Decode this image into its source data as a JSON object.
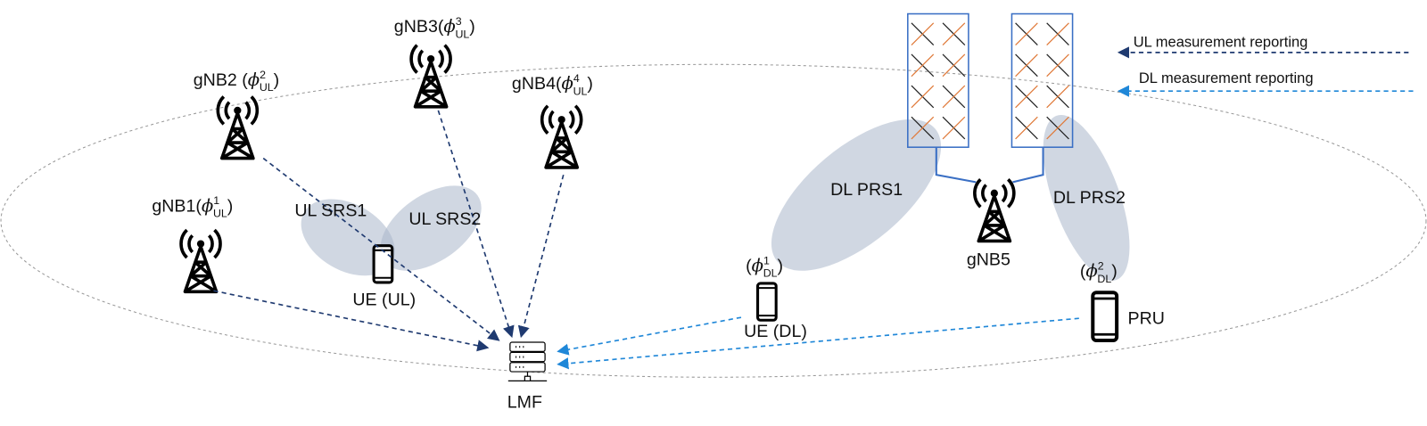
{
  "nodes": [
    {
      "prefix": "gNB1(",
      "phi": "ϕ",
      "sup": "1",
      "sub": "UL",
      "suffix": ")"
    },
    {
      "prefix": "gNB2 (",
      "phi": "ϕ",
      "sup": "2",
      "sub": "UL",
      "suffix": ")"
    },
    {
      "prefix": "gNB3(",
      "phi": "ϕ",
      "sup": "3",
      "sub": "UL",
      "suffix": ")"
    },
    {
      "prefix": "gNB4(",
      "phi": "ϕ",
      "sup": "4",
      "sub": "UL",
      "suffix": ")"
    },
    {
      "label": "gNB5"
    },
    {
      "label": "UE (UL)"
    },
    {
      "label": "UE (DL)",
      "prefix": "(",
      "phi": "ϕ",
      "sup": "1",
      "sub": "DL",
      "suffix": ")"
    },
    {
      "label": "PRU",
      "prefix": "(",
      "phi": "ϕ",
      "sup": "2",
      "sub": "DL",
      "suffix": ")"
    },
    {
      "label": "LMF"
    }
  ],
  "beams": [
    "UL SRS1",
    "UL SRS2",
    "DL PRS1",
    "DL PRS2"
  ],
  "legend": [
    "UL measurement reporting",
    "DL measurement reporting"
  ]
}
